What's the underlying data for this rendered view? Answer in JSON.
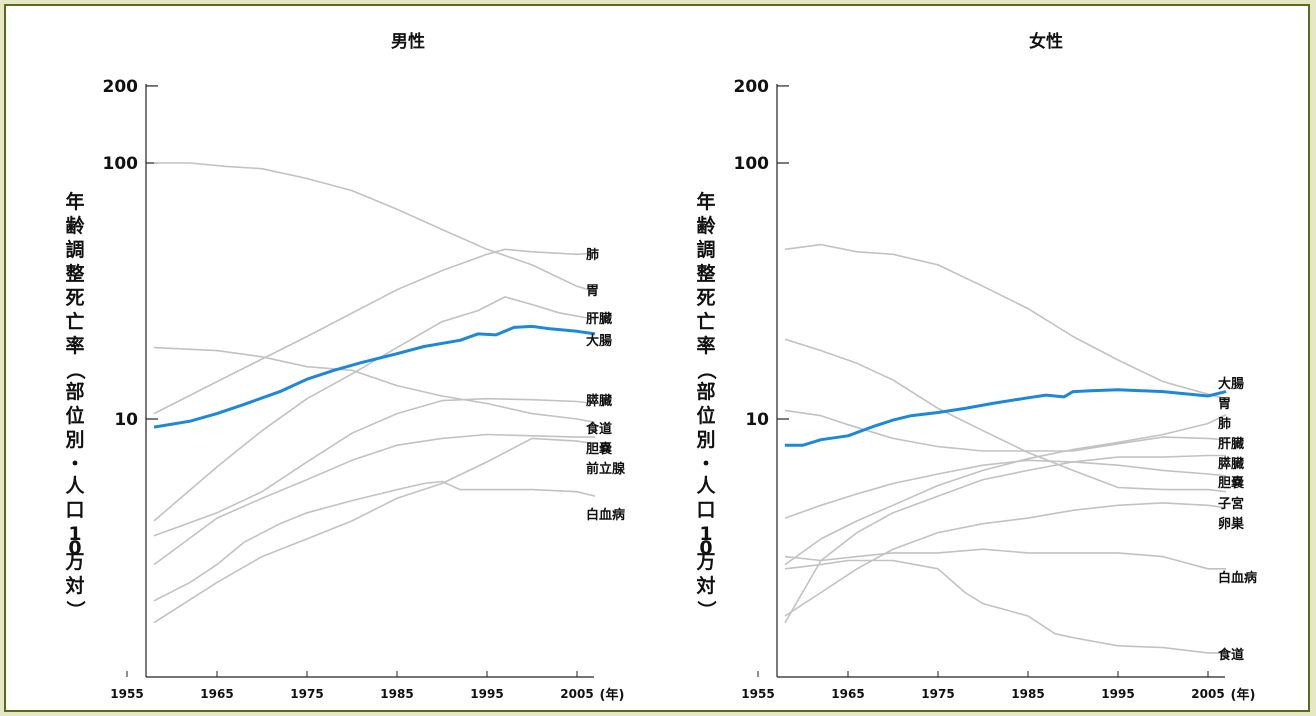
{
  "chart_data": [
    {
      "type": "line",
      "title": "男性",
      "ylabel": "年齢調整死亡率（部位別・人口10万対）",
      "xlabel_unit": "(年)",
      "y_scale": "log",
      "ylim": [
        1,
        200
      ],
      "y_ticks": [
        "200",
        "100",
        "10"
      ],
      "y_tick_values": [
        200,
        100,
        10
      ],
      "xlim": [
        1955,
        2007
      ],
      "x_ticks": [
        "1955",
        "1965",
        "1975",
        "1985",
        "1995",
        "2005"
      ],
      "x_tick_values": [
        1955,
        1965,
        1975,
        1985,
        1995,
        2005
      ],
      "highlight_color": "#1e88d8",
      "base_color": "#c2c2c2",
      "series": [
        {
          "name": "肺",
          "x": [
            1958,
            1965,
            1975,
            1985,
            1990,
            1995,
            1997,
            2000,
            2005,
            2007
          ],
          "y": [
            10.5,
            14,
            21,
            32,
            38,
            44,
            46,
            45,
            44,
            44.5
          ]
        },
        {
          "name": "胃",
          "x": [
            1958,
            1962,
            1966,
            1970,
            1975,
            1980,
            1985,
            1990,
            1995,
            2000,
            2005,
            2007
          ],
          "y": [
            100,
            100,
            97,
            95,
            87,
            78,
            66,
            55,
            46,
            40,
            33,
            31.5
          ]
        },
        {
          "name": "肝臓",
          "x": [
            1958,
            1965,
            1970,
            1975,
            1980,
            1985,
            1990,
            1994,
            1997,
            2000,
            2003,
            2007
          ],
          "y": [
            4,
            6.5,
            9,
            12,
            15,
            19,
            24,
            26.5,
            30,
            28,
            26,
            24.5
          ]
        },
        {
          "name": "大腸",
          "highlight": true,
          "x": [
            1958,
            1962,
            1965,
            1968,
            1972,
            1975,
            1978,
            1981,
            1985,
            1988,
            1992,
            1994,
            1996,
            1998,
            2000,
            2002,
            2005,
            2007
          ],
          "y": [
            9.3,
            9.8,
            10.5,
            11.4,
            12.8,
            14.3,
            15.5,
            16.6,
            18,
            19.2,
            20.3,
            21.5,
            21.3,
            22.8,
            23,
            22.5,
            22,
            21.5
          ]
        },
        {
          "name": "膵臓",
          "x": [
            1958,
            1965,
            1970,
            1975,
            1980,
            1985,
            1990,
            1995,
            2000,
            2005,
            2007
          ],
          "y": [
            3.5,
            4.3,
            5.2,
            6.8,
            8.8,
            10.5,
            11.8,
            12,
            11.9,
            11.7,
            11.5
          ]
        },
        {
          "name": "食道",
          "x": [
            1958,
            1965,
            1970,
            1975,
            1980,
            1985,
            1990,
            1995,
            2000,
            2005,
            2007
          ],
          "y": [
            19,
            18.5,
            17.5,
            16,
            15.5,
            13.5,
            12.3,
            11.5,
            10.5,
            10,
            9.7
          ]
        },
        {
          "name": "胆嚢",
          "x": [
            1958,
            1965,
            1970,
            1975,
            1980,
            1985,
            1990,
            1995,
            2000,
            2005,
            2007
          ],
          "y": [
            2.7,
            4.1,
            4.9,
            5.8,
            6.9,
            7.9,
            8.4,
            8.7,
            8.6,
            8.5,
            8.5
          ]
        },
        {
          "name": "前立腺",
          "x": [
            1958,
            1965,
            1970,
            1975,
            1980,
            1985,
            1990,
            1995,
            2000,
            2005,
            2007
          ],
          "y": [
            1.6,
            2.3,
            2.9,
            3.4,
            4.0,
            4.9,
            5.6,
            6.8,
            8.4,
            8.2,
            8.0
          ]
        },
        {
          "name": "白血病",
          "x": [
            1958,
            1962,
            1965,
            1968,
            1972,
            1975,
            1980,
            1985,
            1988,
            1990,
            1992,
            1995,
            2000,
            2005,
            2007
          ],
          "y": [
            1.95,
            2.3,
            2.7,
            3.3,
            3.9,
            4.3,
            4.8,
            5.3,
            5.6,
            5.7,
            5.3,
            5.3,
            5.3,
            5.2,
            5.0
          ]
        }
      ]
    },
    {
      "type": "line",
      "title": "女性",
      "ylabel": "年齢調整死亡率（部位別・人口10万対）",
      "xlabel_unit": "(年)",
      "y_scale": "log",
      "ylim": [
        1,
        200
      ],
      "y_ticks": [
        "200",
        "100",
        "10"
      ],
      "y_tick_values": [
        200,
        100,
        10
      ],
      "xlim": [
        1955,
        2007
      ],
      "x_ticks": [
        "1955",
        "1965",
        "1975",
        "1985",
        "1995",
        "2005"
      ],
      "x_tick_values": [
        1955,
        1965,
        1975,
        1985,
        1995,
        2005
      ],
      "highlight_color": "#1e88d8",
      "base_color": "#c2c2c2",
      "series": [
        {
          "name": "大腸",
          "highlight": true,
          "x": [
            1958,
            1960,
            1962,
            1965,
            1968,
            1970,
            1972,
            1975,
            1978,
            1981,
            1985,
            1987,
            1989,
            1990,
            1992,
            1995,
            2000,
            2003,
            2005,
            2007
          ],
          "y": [
            7.9,
            7.9,
            8.3,
            8.6,
            9.4,
            9.9,
            10.3,
            10.6,
            11.0,
            11.5,
            12.1,
            12.4,
            12.2,
            12.8,
            12.9,
            13.0,
            12.8,
            12.5,
            12.3,
            12.8
          ]
        },
        {
          "name": "胃",
          "x": [
            1958,
            1962,
            1966,
            1970,
            1975,
            1980,
            1985,
            1990,
            1995,
            2000,
            2005,
            2007
          ],
          "y": [
            46,
            48,
            45,
            44,
            40,
            33,
            27,
            21,
            17,
            14,
            12.5,
            12
          ]
        },
        {
          "name": "肺",
          "x": [
            1958,
            1962,
            1966,
            1970,
            1975,
            1980,
            1985,
            1990,
            1995,
            2000,
            2005,
            2007
          ],
          "y": [
            2.7,
            3.4,
            4.0,
            4.6,
            5.5,
            6.3,
            7.0,
            7.6,
            8.1,
            8.7,
            9.6,
            10.4
          ]
        },
        {
          "name": "肝臓",
          "x": [
            1958,
            1962,
            1965,
            1970,
            1975,
            1980,
            1985,
            1990,
            1995,
            2000,
            2005,
            2007
          ],
          "y": [
            10.8,
            10.3,
            9.5,
            8.4,
            7.8,
            7.5,
            7.5,
            7.5,
            8.0,
            8.5,
            8.4,
            8.3
          ]
        },
        {
          "name": "膵臓",
          "x": [
            1958,
            1962,
            1966,
            1970,
            1975,
            1980,
            1985,
            1990,
            1995,
            2000,
            2005,
            2007
          ],
          "y": [
            1.6,
            2.8,
            3.6,
            4.3,
            5.0,
            5.8,
            6.3,
            6.8,
            7.1,
            7.1,
            7.2,
            7.2
          ]
        },
        {
          "name": "胆嚢",
          "x": [
            1958,
            1962,
            1966,
            1970,
            1975,
            1980,
            1985,
            1990,
            1995,
            2000,
            2005,
            2007
          ],
          "y": [
            4.1,
            4.6,
            5.1,
            5.6,
            6.1,
            6.6,
            6.9,
            6.8,
            6.6,
            6.3,
            6.1,
            6.0
          ]
        },
        {
          "name": "子宮",
          "x": [
            1958,
            1962,
            1966,
            1970,
            1975,
            1980,
            1985,
            1990,
            1995,
            2000,
            2005,
            2007
          ],
          "y": [
            20.5,
            18.5,
            16.5,
            14.2,
            11,
            9,
            7.4,
            6.3,
            5.4,
            5.3,
            5.3,
            5.2
          ]
        },
        {
          "name": "卵巣",
          "x": [
            1958,
            1962,
            1966,
            1970,
            1975,
            1980,
            1985,
            1990,
            1995,
            2000,
            2005,
            2007
          ],
          "y": [
            1.7,
            2.1,
            2.6,
            3.1,
            3.6,
            3.9,
            4.1,
            4.4,
            4.6,
            4.7,
            4.6,
            4.5
          ]
        },
        {
          "name": "白血病",
          "x": [
            1958,
            1962,
            1966,
            1970,
            1975,
            1980,
            1985,
            1990,
            1995,
            2000,
            2005,
            2007
          ],
          "y": [
            2.9,
            2.8,
            2.9,
            3.0,
            3.0,
            3.1,
            3.0,
            3.0,
            3.0,
            2.9,
            2.6,
            2.6
          ]
        },
        {
          "name": "食道",
          "x": [
            1958,
            1962,
            1965,
            1970,
            1975,
            1978,
            1980,
            1985,
            1988,
            1990,
            1995,
            2000,
            2005,
            2007
          ],
          "y": [
            2.6,
            2.7,
            2.8,
            2.8,
            2.6,
            2.1,
            1.9,
            1.7,
            1.45,
            1.4,
            1.3,
            1.28,
            1.22,
            1.22
          ]
        }
      ]
    }
  ]
}
